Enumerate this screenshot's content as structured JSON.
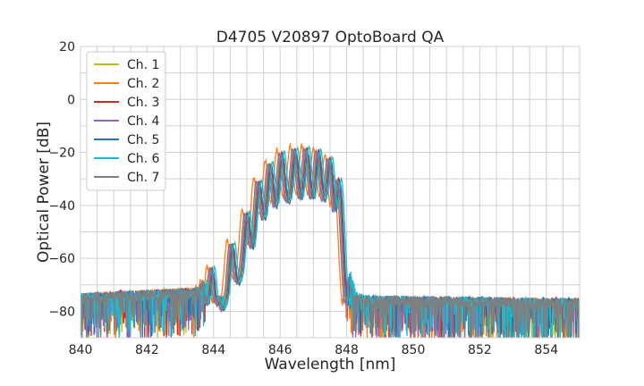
{
  "chart_data": {
    "type": "line",
    "title": "D4705 V20897 OptoBoard QA",
    "xlabel": "Wavelength [nm]",
    "ylabel": "Optical Power [dB]",
    "xlim": [
      840,
      855
    ],
    "ylim": [
      -90,
      20
    ],
    "xticks": [
      840,
      842,
      844,
      846,
      848,
      850,
      852,
      854
    ],
    "yticks": [
      -80,
      -60,
      -40,
      -20,
      0,
      20
    ],
    "grid": true,
    "legend_position": "top-left",
    "noise_floor_db": -76,
    "series": [
      {
        "name": "Ch. 1",
        "color": "#bcbd22",
        "shift_nm": 0.0,
        "offset_db": 0.0
      },
      {
        "name": "Ch. 2",
        "color": "#ff7f0e",
        "shift_nm": -0.1,
        "offset_db": 1.5
      },
      {
        "name": "Ch. 3",
        "color": "#d62728",
        "shift_nm": 0.05,
        "offset_db": 0.5
      },
      {
        "name": "Ch. 4",
        "color": "#9467bd",
        "shift_nm": -0.03,
        "offset_db": 0.0
      },
      {
        "name": "Ch. 5",
        "color": "#1f77b4",
        "shift_nm": 0.08,
        "offset_db": -0.5
      },
      {
        "name": "Ch. 6",
        "color": "#17becf",
        "shift_nm": 0.12,
        "offset_db": 0.8
      },
      {
        "name": "Ch. 7",
        "color": "#7f7f7f",
        "shift_nm": 0.02,
        "offset_db": -0.3
      }
    ],
    "envelope": {
      "x": [
        840,
        843.5,
        843.9,
        844.5,
        845.0,
        845.4,
        845.9,
        846.3,
        846.8,
        847.3,
        847.7,
        847.85,
        848.0,
        848.2,
        848.6,
        855
      ],
      "y": [
        -73,
        -71,
        -64,
        -55,
        -42,
        -28,
        -21,
        -19,
        -19,
        -20,
        -27,
        -45,
        -65,
        -73,
        -74,
        -75
      ]
    },
    "peaks_nm": [
      843.9,
      844.5,
      844.95,
      845.3,
      845.65,
      846.0,
      846.4,
      846.75,
      847.1,
      847.45,
      847.75
    ]
  }
}
